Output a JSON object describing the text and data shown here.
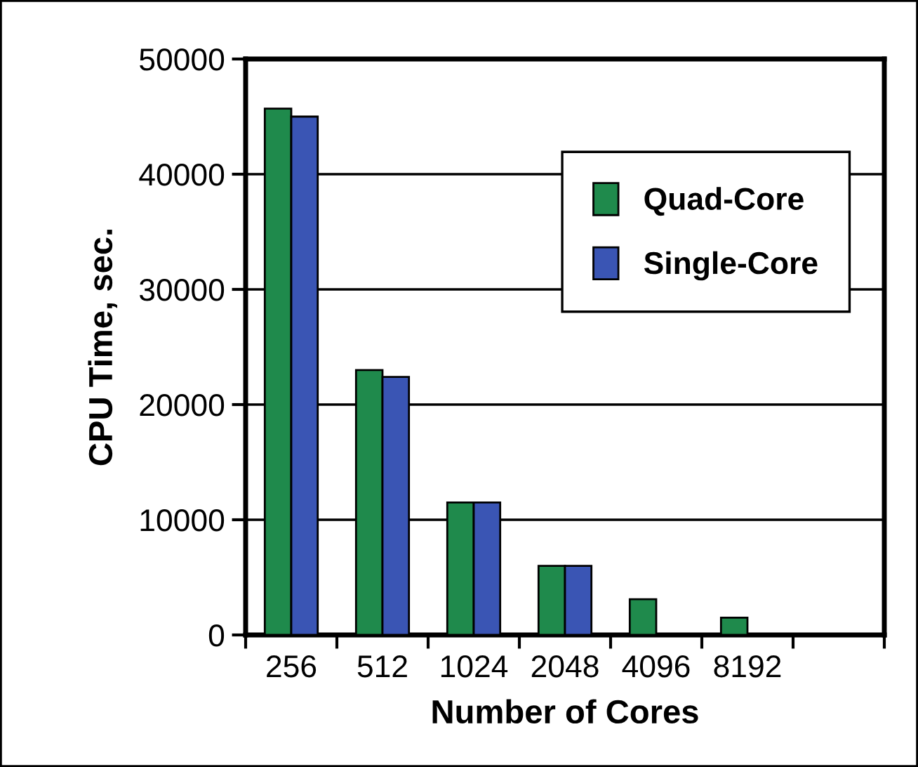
{
  "chart_data": {
    "type": "bar",
    "xlabel": "Number of Cores",
    "ylabel": "CPU Time, sec.",
    "categories": [
      "256",
      "512",
      "1024",
      "2048",
      "4096",
      "8192",
      null
    ],
    "series": [
      {
        "name": "Quad-Core",
        "color": "#1f8a4c",
        "values": [
          45700,
          23000,
          11500,
          6000,
          3100,
          1500,
          null
        ]
      },
      {
        "name": "Single-Core",
        "color": "#3a55b4",
        "values": [
          45000,
          22400,
          11500,
          6000,
          null,
          null,
          null
        ]
      }
    ],
    "ylim": [
      0,
      50000
    ],
    "yticks": [
      0,
      10000,
      20000,
      30000,
      40000,
      50000
    ],
    "grid": "y",
    "legend": "center right"
  }
}
